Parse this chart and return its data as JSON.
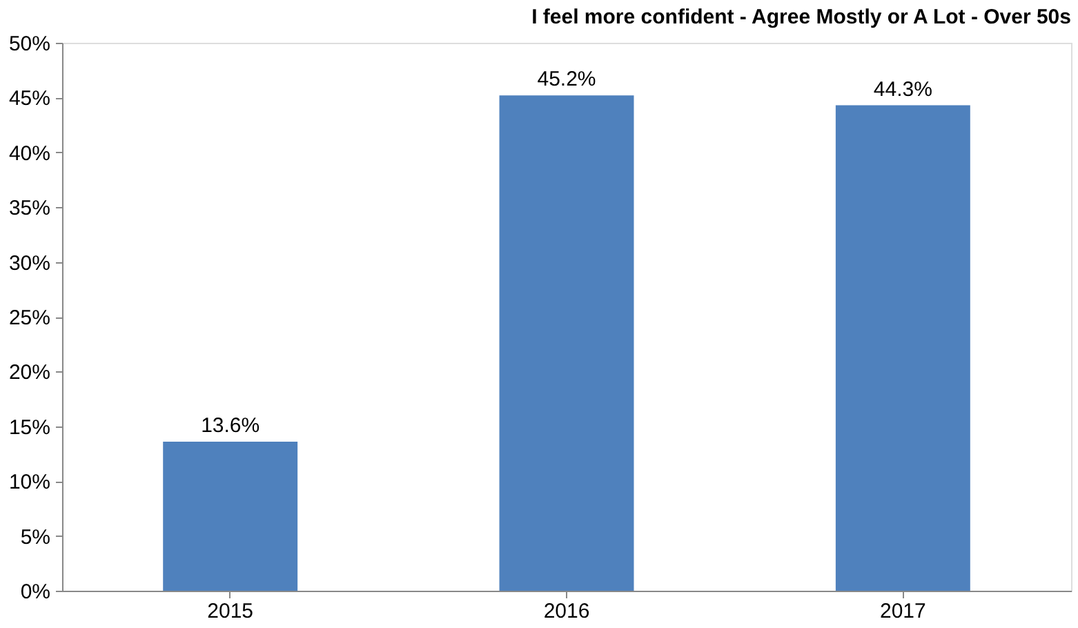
{
  "chart_data": {
    "type": "bar",
    "title": "I feel more confident - Agree Mostly or A Lot - Over 50s",
    "categories": [
      "2015",
      "2016",
      "2017"
    ],
    "values": [
      13.6,
      45.2,
      44.3
    ],
    "value_labels": [
      "13.6%",
      "45.2%",
      "44.3%"
    ],
    "color": "#4f81bd",
    "ylim": [
      0,
      50
    ],
    "yticks": [
      {
        "value": 0,
        "label": "0%"
      },
      {
        "value": 5,
        "label": "5%"
      },
      {
        "value": 10,
        "label": "10%"
      },
      {
        "value": 15,
        "label": "15%"
      },
      {
        "value": 20,
        "label": "20%"
      },
      {
        "value": 25,
        "label": "25%"
      },
      {
        "value": 30,
        "label": "30%"
      },
      {
        "value": 35,
        "label": "35%"
      },
      {
        "value": 40,
        "label": "40%"
      },
      {
        "value": 45,
        "label": "45%"
      },
      {
        "value": 50,
        "label": "50%"
      }
    ]
  }
}
